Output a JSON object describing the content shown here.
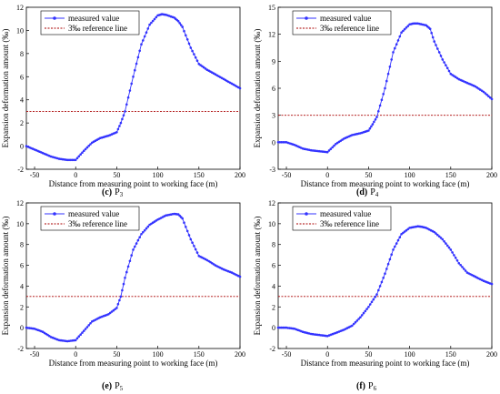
{
  "chart_data": [
    {
      "type": "line",
      "caption_letter": "(c)",
      "caption_text": "P",
      "caption_sub": "3",
      "xlabel": "Distance from measuring point to working face (m)",
      "ylabel": "Expansion deformation amount (‰)",
      "xlim": [
        -60,
        200
      ],
      "ylim": [
        -2,
        12
      ],
      "xticks": [
        -50,
        0,
        50,
        100,
        150,
        200
      ],
      "yticks": [
        -2,
        0,
        2,
        4,
        6,
        8,
        10,
        12
      ],
      "legend": "top-left",
      "grid": false,
      "reference": 3,
      "series": [
        {
          "name": "measured value",
          "color": "#3333ff",
          "x": [
            -60,
            -50,
            -40,
            -30,
            -20,
            -10,
            0,
            10,
            20,
            30,
            40,
            50,
            55,
            60,
            70,
            80,
            90,
            100,
            105,
            110,
            120,
            125,
            130,
            140,
            150,
            160,
            170,
            180,
            190,
            200
          ],
          "y": [
            0,
            -0.3,
            -0.6,
            -0.9,
            -1.1,
            -1.2,
            -1.2,
            -0.4,
            0.3,
            0.7,
            0.9,
            1.2,
            2,
            3,
            6,
            8.8,
            10.5,
            11.3,
            11.4,
            11.35,
            11.1,
            10.8,
            10.3,
            8.5,
            7.1,
            6.6,
            6.2,
            5.8,
            5.4,
            5.0
          ]
        },
        {
          "name": "3‰ reference line",
          "color": "#aa0000",
          "value": 3
        }
      ]
    },
    {
      "type": "line",
      "caption_letter": "(d)",
      "caption_text": "P",
      "caption_sub": "4",
      "xlabel": "Distance from measuring point to working face (m)",
      "ylabel": "Expansion deformation amount (‰)",
      "xlim": [
        -60,
        200
      ],
      "ylim": [
        -3,
        15
      ],
      "xticks": [
        -50,
        0,
        50,
        100,
        150,
        200
      ],
      "yticks": [
        -3,
        0,
        3,
        6,
        9,
        12,
        15
      ],
      "legend": "top-left",
      "grid": false,
      "reference": 3,
      "series": [
        {
          "name": "measured value",
          "color": "#3333ff",
          "x": [
            -60,
            -50,
            -40,
            -30,
            -20,
            -10,
            0,
            10,
            20,
            30,
            40,
            50,
            55,
            60,
            70,
            80,
            90,
            100,
            105,
            110,
            120,
            125,
            130,
            140,
            150,
            160,
            170,
            180,
            190,
            200
          ],
          "y": [
            0,
            0,
            -0.3,
            -0.7,
            -0.9,
            -1.0,
            -1.1,
            -0.2,
            0.4,
            0.8,
            1.0,
            1.3,
            2,
            2.8,
            6,
            10,
            12.2,
            13.1,
            13.2,
            13.2,
            13,
            12.6,
            11.2,
            9.2,
            7.6,
            7.0,
            6.6,
            6.2,
            5.6,
            4.8
          ]
        },
        {
          "name": "3‰ reference line",
          "color": "#aa0000",
          "value": 3
        }
      ]
    },
    {
      "type": "line",
      "caption_letter": "(e)",
      "caption_text": "P",
      "caption_sub": "5",
      "xlabel": "Distance from measuring point to working face (m)",
      "ylabel": "Expansion deformation amount (‰)",
      "xlim": [
        -60,
        200
      ],
      "ylim": [
        -2,
        12
      ],
      "xticks": [
        -50,
        0,
        50,
        100,
        150,
        200
      ],
      "yticks": [
        -2,
        0,
        2,
        4,
        6,
        8,
        10,
        12
      ],
      "legend": "top-left",
      "grid": false,
      "reference": 3,
      "series": [
        {
          "name": "measured value",
          "color": "#3333ff",
          "x": [
            -60,
            -50,
            -40,
            -30,
            -20,
            -10,
            0,
            10,
            20,
            30,
            40,
            50,
            55,
            60,
            70,
            80,
            90,
            100,
            110,
            120,
            125,
            130,
            140,
            150,
            160,
            170,
            180,
            190,
            200
          ],
          "y": [
            0,
            -0.1,
            -0.4,
            -0.9,
            -1.2,
            -1.3,
            -1.2,
            -0.3,
            0.6,
            1.0,
            1.3,
            1.9,
            3,
            4.8,
            7.5,
            9,
            9.9,
            10.4,
            10.8,
            10.95,
            10.9,
            10.5,
            8.5,
            6.9,
            6.5,
            6.0,
            5.6,
            5.3,
            4.9
          ]
        },
        {
          "name": "3‰ reference line",
          "color": "#aa0000",
          "value": 3
        }
      ]
    },
    {
      "type": "line",
      "caption_letter": "(f)",
      "caption_text": "P",
      "caption_sub": "6",
      "xlabel": "Distance from measuring point to working face (m)",
      "ylabel": "Expansion deformation amount (‰)",
      "xlim": [
        -60,
        200
      ],
      "ylim": [
        -2,
        12
      ],
      "xticks": [
        -50,
        0,
        50,
        100,
        150,
        200
      ],
      "yticks": [
        -2,
        0,
        2,
        4,
        6,
        8,
        10,
        12
      ],
      "legend": "top-left",
      "grid": false,
      "reference": 3,
      "series": [
        {
          "name": "measured value",
          "color": "#3333ff",
          "x": [
            -60,
            -50,
            -40,
            -30,
            -20,
            -10,
            0,
            10,
            20,
            30,
            40,
            50,
            60,
            70,
            80,
            90,
            100,
            110,
            115,
            120,
            130,
            140,
            150,
            160,
            170,
            180,
            190,
            200
          ],
          "y": [
            0,
            0,
            -0.1,
            -0.4,
            -0.6,
            -0.7,
            -0.8,
            -0.5,
            -0.2,
            0.2,
            1.0,
            2.0,
            3.2,
            5.2,
            7.5,
            9.0,
            9.6,
            9.75,
            9.7,
            9.6,
            9.2,
            8.5,
            7.5,
            6.2,
            5.3,
            4.9,
            4.5,
            4.2
          ]
        },
        {
          "name": "3‰ reference line",
          "color": "#aa0000",
          "value": 3
        }
      ]
    }
  ]
}
